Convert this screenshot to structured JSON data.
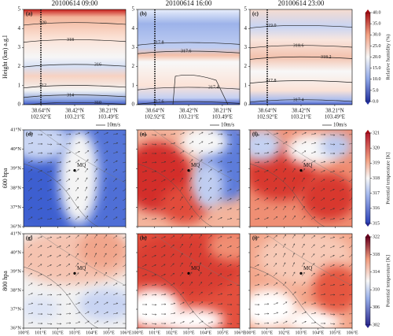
{
  "figure": {
    "top_row": {
      "titles": [
        "20100614 09:00",
        "20100614 16:00",
        "20100614 23:00"
      ],
      "panel_labels": [
        "(a)",
        "(b)",
        "(c)"
      ],
      "y_label": "Height (km) a.g.l",
      "ylim": [
        0,
        5
      ],
      "yticks": [
        0,
        1,
        2,
        3,
        4,
        5
      ],
      "x_tick_labels": [
        [
          "38.64°N",
          "102.92°E"
        ],
        [
          "38.42°N",
          "103.21°E"
        ],
        [
          "38.21°N",
          "103.49°E"
        ]
      ],
      "contour_labels": [
        [
          "320",
          "318",
          "316",
          "312",
          "314",
          "310"
        ],
        [
          "317.8",
          "317.6",
          "317.4",
          "317.6"
        ],
        [
          "319.0",
          "318.6",
          "318.2",
          "317.8",
          "317.4"
        ]
      ],
      "colorbar": {
        "label": "Relative humidity (%)",
        "lim": [
          0,
          40
        ],
        "ticks": [
          {
            "value": 0,
            "label": "0.0"
          },
          {
            "value": 5,
            "label": "5.0"
          },
          {
            "value": 10,
            "label": "10.0"
          },
          {
            "value": 15,
            "label": "15.0"
          },
          {
            "value": 20,
            "label": "20.0"
          },
          {
            "value": 25,
            "label": "25.0"
          },
          {
            "value": 30,
            "label": "30.0"
          },
          {
            "value": 35,
            "label": "35.0"
          },
          {
            "value": 40,
            "label": "40.0"
          }
        ]
      }
    },
    "middle_row": {
      "panel_labels": [
        "(d)",
        "(e)",
        "(f)"
      ],
      "y_label": "600 hpa",
      "station": "MQ",
      "wind_key": "10m/s",
      "colorbar": {
        "label": "Potential temperature [K]",
        "lim": [
          315,
          321
        ],
        "ticks": [
          315,
          316,
          317,
          318,
          319,
          320,
          321
        ]
      }
    },
    "bottom_row": {
      "panel_labels": [
        "(g)",
        "(h)",
        "(i)"
      ],
      "y_label": "800 hpa",
      "station": "MQ",
      "colorbar": {
        "label": "Potential temperature [K]",
        "lim": [
          302,
          322
        ],
        "ticks": [
          302,
          306,
          310,
          314,
          318,
          322
        ]
      }
    },
    "map_axes": {
      "lat_ticks": [
        "36°N",
        "37°N",
        "38°N",
        "39°N",
        "40°N",
        "41°N"
      ],
      "lon_ticks": [
        "100°E",
        "101°E",
        "102°E",
        "103°E",
        "104°E",
        "105°E",
        "106°E"
      ]
    }
  }
}
